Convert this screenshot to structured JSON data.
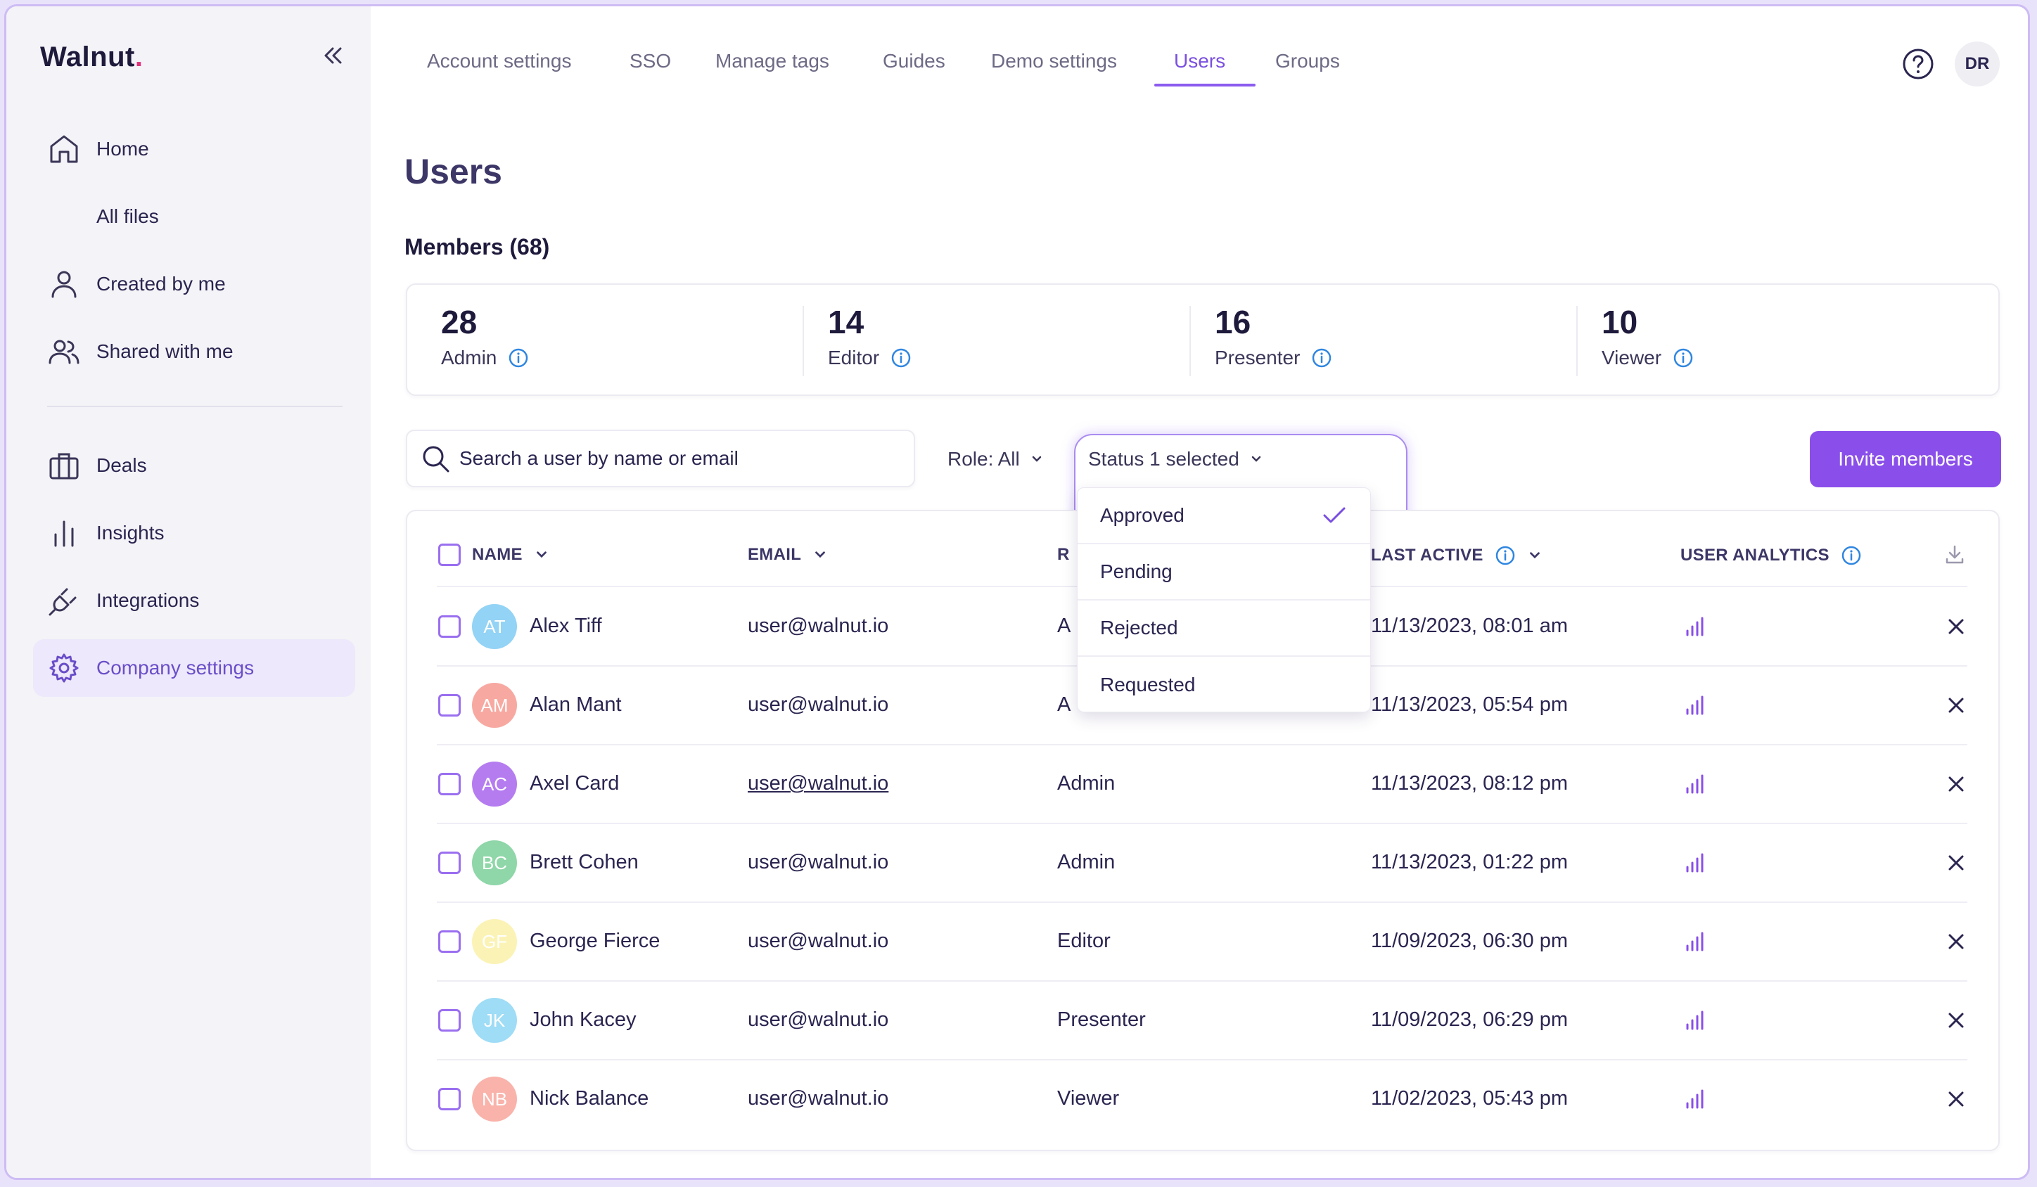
{
  "sidebar": {
    "logo": "Walnut",
    "logo_dot": ".",
    "items": [
      {
        "label": "Home",
        "icon": "home-icon"
      },
      {
        "label": "All files",
        "icon": ""
      },
      {
        "label": "Created by me",
        "icon": "user-icon"
      },
      {
        "label": "Shared with me",
        "icon": "users-icon"
      },
      {
        "label": "Deals",
        "icon": "briefcase-icon"
      },
      {
        "label": "Insights",
        "icon": "bar-chart-icon"
      },
      {
        "label": "Integrations",
        "icon": "plug-icon"
      },
      {
        "label": "Company settings",
        "icon": "gear-icon"
      }
    ]
  },
  "tabs": [
    "Account settings",
    "SSO",
    "Manage tags",
    "Guides",
    "Demo settings",
    "Users",
    "Groups"
  ],
  "active_tab": "Users",
  "user_initials": "DR",
  "page_title": "Users",
  "members_title": "Members (68)",
  "stats": [
    {
      "value": "28",
      "label": "Admin"
    },
    {
      "value": "14",
      "label": "Editor"
    },
    {
      "value": "16",
      "label": "Presenter"
    },
    {
      "value": "10",
      "label": "Viewer"
    }
  ],
  "search": {
    "placeholder": "Search a user by name or email"
  },
  "role_filter": "Role: All",
  "status_filter": "Status 1 selected",
  "status_options": [
    {
      "label": "Approved",
      "selected": true
    },
    {
      "label": "Pending",
      "selected": false
    },
    {
      "label": "Rejected",
      "selected": false
    },
    {
      "label": "Requested",
      "selected": false
    }
  ],
  "invite_label": "Invite members",
  "columns": {
    "name": "NAME",
    "email": "EMAIL",
    "role": "R",
    "last_active": "LAST ACTIVE",
    "analytics": "USER ANALYTICS"
  },
  "rows": [
    {
      "initials": "AT",
      "name": "Alex Tiff",
      "email": "user@walnut.io",
      "role": "A",
      "last_active": "11/13/2023, 08:01 am",
      "color": "#93d3f5"
    },
    {
      "initials": "AM",
      "name": "Alan Mant",
      "email": "user@walnut.io",
      "role": "A",
      "last_active": "11/13/2023, 05:54 pm",
      "color": "#f7a9a1"
    },
    {
      "initials": "AC",
      "name": "Axel Card",
      "email": "user@walnut.io",
      "role": "Admin",
      "last_active": "11/13/2023, 08:12 pm",
      "color": "#b57cf0"
    },
    {
      "initials": "BC",
      "name": "Brett Cohen",
      "email": "user@walnut.io",
      "role": "Admin",
      "last_active": "11/13/2023, 01:22 pm",
      "color": "#8fd6a8"
    },
    {
      "initials": "GF",
      "name": "George Fierce",
      "email": "user@walnut.io",
      "role": "Editor",
      "last_active": "11/09/2023, 06:30 pm",
      "color": "#fbf3b6"
    },
    {
      "initials": "JK",
      "name": "John Kacey",
      "email": "user@walnut.io",
      "role": "Presenter",
      "last_active": "11/09/2023, 06:29 pm",
      "color": "#9fdcf6"
    },
    {
      "initials": "NB",
      "name": "Nick Balance",
      "email": "user@walnut.io",
      "role": "Viewer",
      "last_active": "11/02/2023, 05:43 pm",
      "color": "#f9b3ab"
    }
  ],
  "colors": {
    "accent": "#8a4fea",
    "info": "#2f86e0",
    "analytics": "#8a4fea"
  }
}
